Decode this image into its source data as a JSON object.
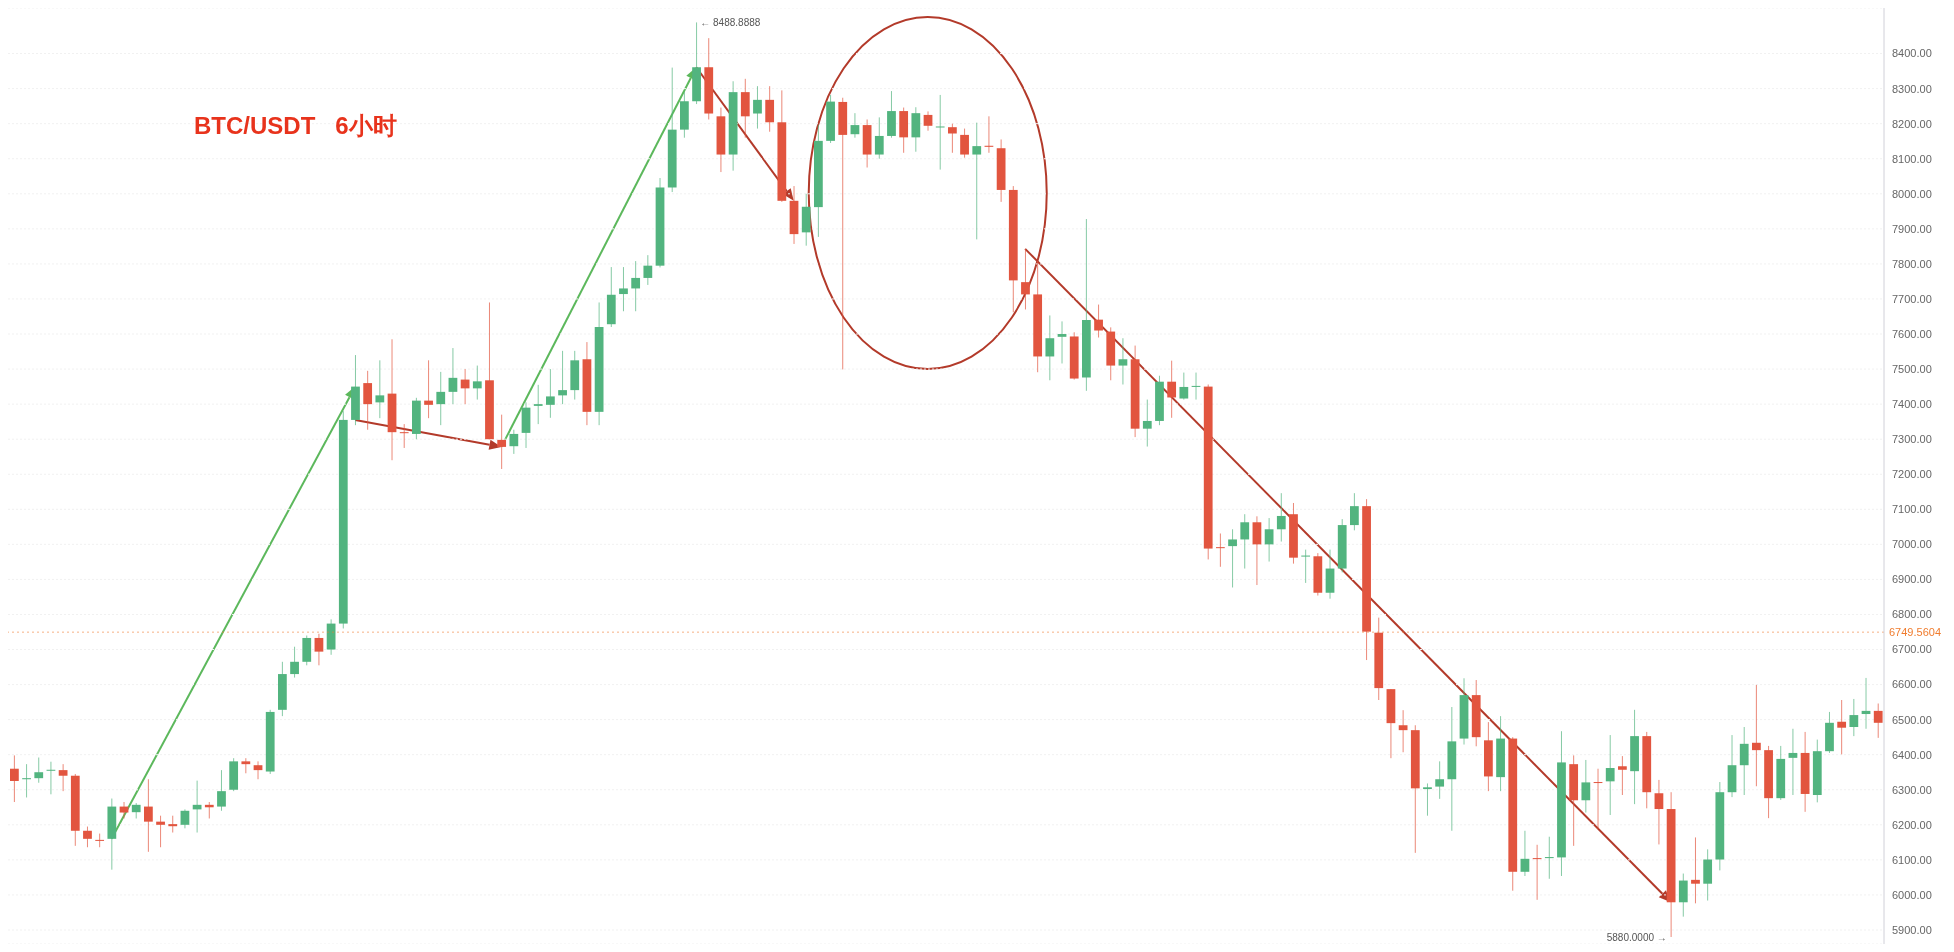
{
  "chart_data": {
    "type": "candlestick",
    "title": "BTC/USDT   6小时",
    "categories": [
      null,
      null,
      null,
      null,
      null,
      null,
      null,
      null,
      null,
      null,
      null,
      null,
      null,
      null,
      null,
      null,
      null,
      null,
      null,
      null,
      null,
      null,
      null,
      null,
      null,
      null,
      null,
      null,
      null,
      null,
      null,
      null,
      null,
      null,
      null,
      null,
      null,
      null,
      null,
      null,
      null,
      null,
      null,
      null,
      null,
      null,
      null,
      null,
      null,
      null,
      null,
      null,
      null,
      null,
      null,
      null,
      null,
      null,
      null,
      null,
      null,
      null,
      null,
      null,
      null,
      null,
      null,
      null,
      null,
      null,
      null,
      null,
      null,
      null,
      null,
      null,
      null,
      null,
      null,
      null,
      null,
      null,
      null,
      null,
      null,
      null,
      null,
      null,
      null,
      null,
      null,
      null,
      null,
      null,
      null,
      null,
      null,
      null,
      null,
      null,
      null,
      null,
      null,
      null,
      null,
      null,
      null,
      null,
      null,
      null,
      null,
      null,
      null,
      null,
      null,
      null,
      null,
      null,
      null,
      null,
      null,
      null,
      null,
      null,
      null,
      null,
      null,
      null,
      null,
      null,
      null,
      null,
      null,
      null,
      null,
      null,
      null,
      null,
      null,
      null,
      null,
      null,
      null,
      null,
      null,
      null,
      null,
      null,
      null,
      null,
      null,
      null,
      null,
      null
    ],
    "ohlc": [
      [
        6360,
        6398,
        6265,
        6325
      ],
      [
        6330,
        6373,
        6278,
        6333
      ],
      [
        6333,
        6392,
        6320,
        6350
      ],
      [
        6355,
        6380,
        6287,
        6357
      ],
      [
        6356,
        6373,
        6296,
        6340
      ],
      [
        6340,
        6345,
        6140,
        6183
      ],
      [
        6183,
        6195,
        6136,
        6160
      ],
      [
        6157,
        6175,
        6136,
        6155
      ],
      [
        6160,
        6275,
        6072,
        6252
      ],
      [
        6252,
        6265,
        6218,
        6235
      ],
      [
        6236,
        6262,
        6218,
        6257
      ],
      [
        6252,
        6330,
        6123,
        6209
      ],
      [
        6209,
        6226,
        6136,
        6200
      ],
      [
        6202,
        6226,
        6178,
        6196
      ],
      [
        6200,
        6244,
        6190,
        6240
      ],
      [
        6244,
        6326,
        6178,
        6257
      ],
      [
        6257,
        6265,
        6218,
        6250
      ],
      [
        6252,
        6356,
        6240,
        6296
      ],
      [
        6300,
        6390,
        6296,
        6381
      ],
      [
        6381,
        6390,
        6347,
        6373
      ],
      [
        6370,
        6381,
        6330,
        6356
      ],
      [
        6352,
        6528,
        6345,
        6522
      ],
      [
        6528,
        6665,
        6510,
        6630
      ],
      [
        6630,
        6708,
        6620,
        6665
      ],
      [
        6665,
        6740,
        6655,
        6733
      ],
      [
        6733,
        6745,
        6655,
        6694
      ],
      [
        6700,
        6786,
        6685,
        6774
      ],
      [
        6774,
        7380,
        6760,
        7355
      ],
      [
        7355,
        7540,
        7340,
        7450
      ],
      [
        7460,
        7495,
        7327,
        7400
      ],
      [
        7405,
        7525,
        7360,
        7425
      ],
      [
        7430,
        7585,
        7240,
        7320
      ],
      [
        7320,
        7343,
        7275,
        7318
      ],
      [
        7315,
        7418,
        7300,
        7410
      ],
      [
        7410,
        7525,
        7360,
        7398
      ],
      [
        7400,
        7492,
        7340,
        7435
      ],
      [
        7435,
        7560,
        7400,
        7475
      ],
      [
        7470,
        7500,
        7400,
        7445
      ],
      [
        7445,
        7510,
        7413,
        7465
      ],
      [
        7468,
        7690,
        7300,
        7300
      ],
      [
        7298,
        7370,
        7215,
        7278
      ],
      [
        7280,
        7327,
        7258,
        7315
      ],
      [
        7318,
        7405,
        7275,
        7390
      ],
      [
        7395,
        7455,
        7343,
        7400
      ],
      [
        7398,
        7500,
        7361,
        7422
      ],
      [
        7425,
        7552,
        7400,
        7440
      ],
      [
        7440,
        7552,
        7413,
        7525
      ],
      [
        7528,
        7577,
        7340,
        7378
      ],
      [
        7378,
        7690,
        7340,
        7620
      ],
      [
        7628,
        7791,
        7620,
        7712
      ],
      [
        7714,
        7791,
        7665,
        7730
      ],
      [
        7730,
        7808,
        7665,
        7760
      ],
      [
        7760,
        7825,
        7740,
        7795
      ],
      [
        7795,
        8045,
        7790,
        8018
      ],
      [
        8018,
        8360,
        8005,
        8183
      ],
      [
        8183,
        8290,
        8160,
        8264
      ],
      [
        8264,
        8488.8888,
        8256,
        8361
      ],
      [
        8361,
        8444,
        8212,
        8229
      ],
      [
        8221,
        8246,
        8062,
        8112
      ],
      [
        8112,
        8321,
        8066,
        8290
      ],
      [
        8290,
        8328,
        8160,
        8221
      ],
      [
        8229,
        8307,
        8186,
        8268
      ],
      [
        8268,
        8307,
        8177,
        8204
      ],
      [
        8204,
        8295,
        7977,
        7980
      ],
      [
        7980,
        8022,
        7857,
        7885
      ],
      [
        7890,
        8000,
        7852,
        7963
      ],
      [
        7962,
        8197,
        7877,
        8151
      ],
      [
        8151,
        8282,
        8145,
        8263
      ],
      [
        8262,
        8274,
        7499,
        8168
      ],
      [
        8170,
        8230,
        8160,
        8196
      ],
      [
        8196,
        8212,
        8075,
        8112
      ],
      [
        8112,
        8218,
        8100,
        8165
      ],
      [
        8165,
        8293,
        8160,
        8236
      ],
      [
        8236,
        8246,
        8117,
        8161
      ],
      [
        8161,
        8247,
        8120,
        8230
      ],
      [
        8225,
        8235,
        8180,
        8194
      ],
      [
        8190,
        8282,
        8069,
        8192
      ],
      [
        8190,
        8200,
        8117,
        8172
      ],
      [
        8168,
        8186,
        8103,
        8112
      ],
      [
        8112,
        8203,
        7870,
        8136
      ],
      [
        8137,
        8221,
        8117,
        8134
      ],
      [
        8130,
        8155,
        7977,
        8011
      ],
      [
        8011,
        8022,
        7662,
        7753
      ],
      [
        7748,
        7843,
        7670,
        7713
      ],
      [
        7713,
        7808,
        7491,
        7536
      ],
      [
        7536,
        7653,
        7468,
        7588
      ],
      [
        7592,
        7636,
        7516,
        7600
      ],
      [
        7593,
        7605,
        7470,
        7473
      ],
      [
        7476,
        7928,
        7438,
        7640
      ],
      [
        7641,
        7684,
        7590,
        7610
      ],
      [
        7607,
        7619,
        7468,
        7510
      ],
      [
        7510,
        7588,
        7456,
        7528
      ],
      [
        7528,
        7567,
        7306,
        7330
      ],
      [
        7330,
        7413,
        7279,
        7352
      ],
      [
        7352,
        7481,
        7340,
        7464
      ],
      [
        7464,
        7524,
        7361,
        7419
      ],
      [
        7416,
        7490,
        7413,
        7449
      ],
      [
        7450,
        7490,
        7413,
        7452
      ],
      [
        7450,
        7456,
        6957,
        6988
      ],
      [
        6992,
        7031,
        6936,
        6990
      ],
      [
        6995,
        7043,
        6877,
        7014
      ],
      [
        7014,
        7086,
        6931,
        7063
      ],
      [
        7063,
        7080,
        6884,
        7000
      ],
      [
        7000,
        7075,
        6951,
        7043
      ],
      [
        7043,
        7146,
        7008,
        7081
      ],
      [
        7086,
        7118,
        6945,
        6962
      ],
      [
        6966,
        6985,
        6890,
        6968
      ],
      [
        6966,
        6975,
        6854,
        6862
      ],
      [
        6862,
        6985,
        6845,
        6931
      ],
      [
        6931,
        7072,
        6920,
        7055
      ],
      [
        7055,
        7146,
        7040,
        7109
      ],
      [
        7109,
        7129,
        6670,
        6751
      ],
      [
        6748,
        6791,
        6556,
        6590
      ],
      [
        6587,
        6587,
        6390,
        6490
      ],
      [
        6484,
        6527,
        6407,
        6470
      ],
      [
        6470,
        6484,
        6120,
        6304
      ],
      [
        6302,
        6318,
        6226,
        6307
      ],
      [
        6309,
        6381,
        6274,
        6330
      ],
      [
        6330,
        6536,
        6183,
        6438
      ],
      [
        6446,
        6618,
        6429,
        6570
      ],
      [
        6570,
        6613,
        6424,
        6450
      ],
      [
        6441,
        6493,
        6296,
        6338
      ],
      [
        6336,
        6510,
        6296,
        6446
      ],
      [
        6446,
        6450,
        6012,
        6066
      ],
      [
        6066,
        6183,
        6054,
        6103
      ],
      [
        6105,
        6143,
        5986,
        6103
      ],
      [
        6105,
        6166,
        6046,
        6108
      ],
      [
        6107,
        6467,
        6054,
        6378
      ],
      [
        6373,
        6398,
        6140,
        6270
      ],
      [
        6270,
        6385,
        6235,
        6321
      ],
      [
        6322,
        6360,
        6188,
        6320
      ],
      [
        6324,
        6456,
        6228,
        6362
      ],
      [
        6367,
        6396,
        6285,
        6357
      ],
      [
        6353,
        6528,
        6259,
        6453
      ],
      [
        6453,
        6465,
        6247,
        6293
      ],
      [
        6290,
        6328,
        6144,
        6245
      ],
      [
        6245,
        6293,
        5880,
        5979
      ],
      [
        5979,
        6061,
        5938,
        6041
      ],
      [
        6043,
        6164,
        5976,
        6032
      ],
      [
        6032,
        6130,
        5984,
        6101
      ],
      [
        6101,
        6322,
        6070,
        6293
      ],
      [
        6293,
        6456,
        6279,
        6370
      ],
      [
        6370,
        6479,
        6285,
        6431
      ],
      [
        6434,
        6599,
        6310,
        6413
      ],
      [
        6413,
        6425,
        6219,
        6276
      ],
      [
        6276,
        6425,
        6271,
        6388
      ],
      [
        6391,
        6474,
        6285,
        6405
      ],
      [
        6405,
        6465,
        6237,
        6288
      ],
      [
        6285,
        6443,
        6264,
        6410
      ],
      [
        6410,
        6522,
        6405,
        6491
      ],
      [
        6494,
        6556,
        6401,
        6477
      ],
      [
        6479,
        6559,
        6453,
        6513
      ],
      [
        6516,
        6619,
        6474,
        6525
      ],
      [
        6525,
        6546,
        6448,
        6491
      ]
    ],
    "colors": [
      "#e2553f",
      "#52b47f",
      "#52b47f",
      "#52b47f",
      "#e2553f",
      "#e2553f",
      "#e2553f",
      "#e2553f",
      "#52b47f",
      "#e2553f",
      "#52b47f",
      "#e2553f",
      "#e2553f",
      "#e2553f",
      "#52b47f",
      "#52b47f",
      "#e2553f",
      "#52b47f",
      "#52b47f",
      "#e2553f",
      "#e2553f",
      "#52b47f",
      "#52b47f",
      "#52b47f",
      "#52b47f",
      "#e2553f",
      "#52b47f",
      "#52b47f",
      "#52b47f",
      "#e2553f",
      "#52b47f",
      "#e2553f",
      "#e2553f",
      "#52b47f",
      "#e2553f",
      "#52b47f",
      "#52b47f",
      "#e2553f",
      "#52b47f",
      "#e2553f",
      "#e2553f",
      "#52b47f",
      "#52b47f",
      "#52b47f",
      "#52b47f",
      "#52b47f",
      "#52b47f",
      "#e2553f",
      "#52b47f",
      "#52b47f",
      "#52b47f",
      "#52b47f",
      "#52b47f",
      "#52b47f",
      "#52b47f",
      "#52b47f",
      "#52b47f",
      "#e2553f",
      "#e2553f",
      "#52b47f",
      "#e2553f",
      "#52b47f",
      "#e2553f",
      "#e2553f",
      "#e2553f",
      "#52b47f",
      "#52b47f",
      "#52b47f",
      "#e2553f",
      "#52b47f",
      "#e2553f",
      "#52b47f",
      "#52b47f",
      "#e2553f",
      "#52b47f",
      "#e2553f",
      "#52b47f",
      "#e2553f",
      "#e2553f",
      "#52b47f",
      "#e2553f",
      "#e2553f",
      "#e2553f",
      "#e2553f",
      "#e2553f",
      "#52b47f",
      "#52b47f",
      "#e2553f",
      "#52b47f",
      "#e2553f",
      "#e2553f",
      "#52b47f",
      "#e2553f",
      "#52b47f",
      "#52b47f",
      "#e2553f",
      "#52b47f",
      "#52b47f",
      "#e2553f",
      "#e2553f",
      "#52b47f",
      "#52b47f",
      "#e2553f",
      "#52b47f",
      "#52b47f",
      "#e2553f",
      "#52b47f",
      "#e2553f",
      "#52b47f",
      "#52b47f",
      "#52b47f",
      "#e2553f",
      "#e2553f",
      "#e2553f",
      "#e2553f",
      "#e2553f",
      "#52b47f",
      "#52b47f",
      "#52b47f",
      "#52b47f",
      "#e2553f",
      "#e2553f",
      "#52b47f",
      "#e2553f",
      "#52b47f",
      "#e2553f",
      "#52b47f",
      "#52b47f",
      "#e2553f",
      "#52b47f",
      "#e2553f",
      "#52b47f",
      "#e2553f",
      "#52b47f",
      "#e2553f",
      "#e2553f",
      "#e2553f",
      "#52b47f",
      "#e2553f",
      "#52b47f",
      "#52b47f",
      "#52b47f",
      "#52b47f",
      "#e2553f",
      "#e2553f",
      "#52b47f",
      "#52b47f",
      "#e2553f",
      "#52b47f",
      "#52b47f",
      "#e2553f",
      "#52b47f",
      "#52b47f",
      "#e2553f"
    ],
    "ylim": [
      5860,
      8530
    ],
    "yticks": [
      {
        "value": 5900,
        "label": "5900.00"
      },
      {
        "value": 6000,
        "label": "6000.00"
      },
      {
        "value": 6100,
        "label": "6100.00"
      },
      {
        "value": 6200,
        "label": "6200.00"
      },
      {
        "value": 6300,
        "label": "6300.00"
      },
      {
        "value": 6400,
        "label": "6400.00"
      },
      {
        "value": 6500,
        "label": "6500.00"
      },
      {
        "value": 6600,
        "label": "6600.00"
      },
      {
        "value": 6700,
        "label": "6700.00"
      },
      {
        "value": 6800,
        "label": "6800.00"
      },
      {
        "value": 6900,
        "label": "6900.00"
      },
      {
        "value": 7000,
        "label": "7000.00"
      },
      {
        "value": 7100,
        "label": "7100.00"
      },
      {
        "value": 7200,
        "label": "7200.00"
      },
      {
        "value": 7300,
        "label": "7300.00"
      },
      {
        "value": 7400,
        "label": "7400.00"
      },
      {
        "value": 7500,
        "label": "7500.00"
      },
      {
        "value": 7600,
        "label": "7600.00"
      },
      {
        "value": 7700,
        "label": "7700.00"
      },
      {
        "value": 7800,
        "label": "7800.00"
      },
      {
        "value": 7900,
        "label": "7900.00"
      },
      {
        "value": 8000,
        "label": "8000.00"
      },
      {
        "value": 8100,
        "label": "8100.00"
      },
      {
        "value": 8200,
        "label": "8200.00"
      },
      {
        "value": 8300,
        "label": "8300.00"
      },
      {
        "value": 8400,
        "label": "8400.00"
      }
    ],
    "grid": "y",
    "tick_labels": "y",
    "ref_lines": [
      {
        "axis": "y",
        "value": 6749.5604,
        "label": "6749.5604",
        "color": "#f07c2e",
        "line_style": "dotted"
      }
    ],
    "annotations": [
      "← 8488.8888",
      "5880.0000 →"
    ]
  }
}
